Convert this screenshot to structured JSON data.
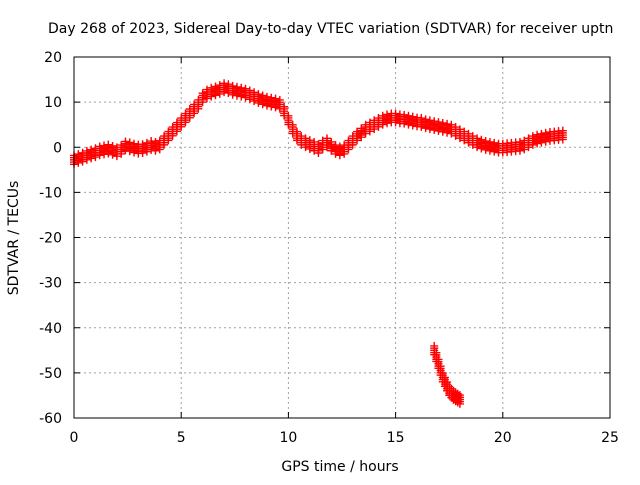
{
  "chart_data": {
    "type": "scatter",
    "title": "Day 268 of 2023, Sidereal Day-to-day VTEC variation (SDTVAR) for receiver uptn",
    "xlabel": "GPS time / hours",
    "ylabel": "SDTVAR / TECUs",
    "xlim": [
      0,
      25
    ],
    "ylim": [
      -60,
      20
    ],
    "xticks": [
      0,
      5,
      10,
      15,
      20,
      25
    ],
    "yticks": [
      20,
      10,
      0,
      -10,
      -20,
      -30,
      -40,
      -50,
      -60
    ],
    "xtick_labels": [
      "0",
      "5",
      "10",
      "15",
      "20",
      "25"
    ],
    "ytick_labels": [
      "20",
      "10",
      "0",
      "-10",
      "-20",
      "-30",
      "-40",
      "-50",
      "-60"
    ],
    "grid": true,
    "marker": "plus",
    "series": [
      {
        "name": "SDTVAR",
        "color": "#ff0000",
        "x": [
          0.0,
          0.2,
          0.4,
          0.6,
          0.8,
          1.0,
          1.2,
          1.4,
          1.6,
          1.8,
          2.0,
          2.2,
          2.4,
          2.6,
          2.8,
          3.0,
          3.2,
          3.4,
          3.6,
          3.8,
          4.0,
          4.2,
          4.4,
          4.6,
          4.8,
          5.0,
          5.2,
          5.4,
          5.6,
          5.8,
          6.0,
          6.2,
          6.4,
          6.6,
          6.8,
          7.0,
          7.2,
          7.4,
          7.6,
          7.8,
          8.0,
          8.2,
          8.4,
          8.6,
          8.8,
          9.0,
          9.2,
          9.4,
          9.6,
          9.8,
          10.0,
          10.2,
          10.4,
          10.6,
          10.8,
          11.0,
          11.2,
          11.4,
          11.6,
          11.8,
          12.0,
          12.2,
          12.4,
          12.6,
          12.8,
          13.0,
          13.2,
          13.4,
          13.6,
          13.8,
          14.0,
          14.2,
          14.4,
          14.6,
          14.8,
          15.0,
          15.2,
          15.4,
          15.6,
          15.8,
          16.0,
          16.2,
          16.4,
          16.6,
          16.8,
          17.0,
          17.2,
          17.4,
          17.6,
          17.8,
          18.0,
          18.2,
          18.4,
          18.6,
          18.8,
          19.0,
          19.2,
          19.4,
          19.6,
          19.8,
          20.0,
          20.2,
          20.4,
          20.6,
          20.8,
          21.0,
          21.2,
          21.4,
          21.6,
          21.8,
          22.0,
          22.2,
          22.4,
          22.6,
          22.8,
          16.8,
          16.9,
          17.0,
          17.1,
          17.2,
          17.3,
          17.4,
          17.5,
          17.6,
          17.7,
          17.8,
          17.9,
          18.0
        ],
        "y": [
          -2.8,
          -2.5,
          -2.2,
          -1.8,
          -1.5,
          -1.2,
          -0.8,
          -0.6,
          -0.4,
          -0.7,
          -1.0,
          -0.5,
          0.3,
          0.1,
          -0.2,
          -0.4,
          -0.3,
          0.0,
          0.4,
          0.2,
          0.5,
          1.5,
          2.5,
          3.5,
          4.5,
          5.5,
          6.5,
          7.5,
          8.5,
          9.5,
          11.0,
          11.8,
          12.2,
          12.5,
          12.8,
          13.2,
          13.0,
          12.6,
          12.4,
          12.2,
          12.0,
          11.6,
          11.2,
          10.8,
          10.5,
          10.2,
          10.0,
          9.8,
          9.5,
          8.0,
          6.0,
          4.0,
          2.5,
          1.5,
          1.0,
          0.6,
          0.2,
          -0.3,
          0.5,
          1.0,
          0.2,
          -0.5,
          -0.8,
          -0.5,
          0.5,
          1.5,
          2.5,
          3.2,
          4.0,
          4.5,
          5.0,
          5.5,
          6.0,
          6.3,
          6.5,
          6.5,
          6.3,
          6.2,
          6.0,
          5.8,
          5.6,
          5.5,
          5.2,
          5.0,
          4.8,
          4.6,
          4.4,
          4.2,
          4.0,
          3.5,
          3.0,
          2.5,
          2.0,
          1.5,
          1.0,
          0.7,
          0.4,
          0.2,
          0.0,
          -0.2,
          -0.2,
          -0.1,
          0.0,
          0.1,
          0.2,
          0.5,
          1.0,
          1.5,
          1.8,
          2.0,
          2.2,
          2.4,
          2.5,
          2.6,
          2.7,
          -45.0,
          -46.5,
          -48.0,
          -49.5,
          -51.0,
          -52.0,
          -53.0,
          -54.0,
          -54.5,
          -55.0,
          -55.3,
          -55.6,
          -55.9
        ]
      }
    ]
  }
}
